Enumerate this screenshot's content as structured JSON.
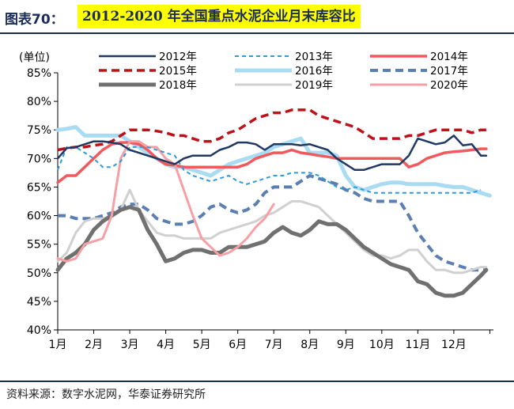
{
  "header": {
    "figure_label": "图表70：",
    "title": "2012-2020 年全国重点水泥企业月末库容比"
  },
  "footer": {
    "source": "资料来源：数字水泥网，华泰证券研究所"
  },
  "colors": {
    "header_blue": "#1a2d5a",
    "title_highlight": "#ffff00"
  },
  "chart_data": {
    "type": "line",
    "ylabel": "(单位)",
    "ylim": [
      40,
      85
    ],
    "yticks": [
      "40%",
      "45%",
      "50%",
      "55%",
      "60%",
      "65%",
      "70%",
      "75%",
      "80%",
      "85%"
    ],
    "xticks": [
      "1月",
      "2月",
      "3月",
      "4月",
      "5月",
      "6月",
      "7月",
      "8月",
      "9月",
      "10月",
      "11月",
      "12月"
    ],
    "xlim": [
      1,
      13.1
    ],
    "grid": false,
    "legend_position": "top",
    "series": [
      {
        "name": "2012年",
        "color": "#1f3864",
        "width": 2.5,
        "dash": "",
        "x": [
          1,
          1.25,
          1.5,
          1.75,
          2,
          2.25,
          2.5,
          2.75,
          3,
          3.25,
          3.5,
          3.75,
          4,
          4.25,
          4.5,
          4.75,
          5,
          5.25,
          5.5,
          5.75,
          6,
          6.25,
          6.5,
          6.75,
          7,
          7.25,
          7.5,
          7.75,
          8,
          8.25,
          8.5,
          8.75,
          9,
          9.25,
          9.5,
          9.75,
          10,
          10.25,
          10.5,
          10.75,
          11,
          11.25,
          11.5,
          11.75,
          12,
          12.25,
          12.5,
          12.75,
          12.9
        ],
        "y": [
          70.0,
          71.8,
          72.0,
          72.5,
          73.0,
          73.0,
          72.8,
          72.5,
          71.5,
          71.0,
          70.5,
          70.0,
          69.5,
          69.0,
          70.0,
          70.5,
          70.5,
          70.5,
          71.5,
          72.0,
          72.8,
          72.8,
          72.5,
          71.5,
          72.5,
          72.5,
          72.5,
          72.3,
          72.5,
          72.0,
          71.5,
          70.0,
          69.0,
          68.0,
          68.0,
          68.5,
          69.0,
          69.0,
          69.0,
          70.5,
          73.5,
          73.0,
          72.5,
          72.8,
          74.0,
          72.3,
          72.5,
          70.5,
          70.5
        ]
      },
      {
        "name": "2013年",
        "color": "#2e9bd6",
        "width": 2,
        "dash": "5,4",
        "x": [
          1,
          1.25,
          1.5,
          1.75,
          2,
          2.25,
          2.5,
          2.75,
          3,
          3.25,
          3.5,
          3.75,
          4,
          4.25,
          4.5,
          4.75,
          5,
          5.25,
          5.5,
          5.75,
          6,
          6.25,
          6.5,
          6.75,
          7,
          7.25,
          7.5,
          7.75,
          8,
          8.25,
          8.5,
          8.75,
          9,
          9.25,
          9.5,
          9.75,
          10,
          10.25,
          10.5,
          10.75,
          11,
          11.25,
          11.5,
          11.75,
          12,
          12.25,
          12.5,
          12.75
        ],
        "y": [
          68.0,
          72.0,
          72.0,
          71.0,
          70.0,
          68.5,
          68.5,
          69.5,
          72.0,
          72.0,
          72.0,
          71.5,
          71.0,
          70.5,
          68.0,
          67.0,
          66.5,
          66.0,
          66.5,
          67.0,
          66.0,
          65.5,
          66.0,
          66.5,
          67.0,
          67.0,
          67.5,
          67.5,
          67.5,
          67.0,
          66.0,
          65.0,
          64.5,
          65.0,
          64.5,
          64.0,
          64.0,
          64.0,
          64.0,
          64.0,
          64.0,
          64.0,
          64.0,
          64.0,
          64.0,
          64.0,
          64.0,
          64.5
        ]
      },
      {
        "name": "2014年",
        "color": "#f0595d",
        "width": 3.5,
        "dash": "",
        "x": [
          1,
          1.25,
          1.5,
          1.75,
          2,
          2.25,
          2.5,
          2.75,
          3,
          3.25,
          3.5,
          3.75,
          4,
          4.25,
          4.5,
          4.75,
          5,
          5.25,
          5.5,
          5.75,
          6,
          6.25,
          6.5,
          6.75,
          7,
          7.25,
          7.5,
          7.75,
          8,
          8.25,
          8.5,
          8.75,
          9,
          9.25,
          9.5,
          9.75,
          10,
          10.25,
          10.5,
          10.75,
          11,
          11.25,
          11.5,
          11.75,
          12,
          12.25,
          12.5,
          12.75,
          12.9
        ],
        "y": [
          65.8,
          67.0,
          67.0,
          68.5,
          70.0,
          71.5,
          72.5,
          72.8,
          72.8,
          72.5,
          71.5,
          70.0,
          69.0,
          68.8,
          68.5,
          68.5,
          68.5,
          68.5,
          68.5,
          68.5,
          68.5,
          69.0,
          70.0,
          70.5,
          71.0,
          71.0,
          71.5,
          71.0,
          70.8,
          70.5,
          70.3,
          70.0,
          70.0,
          70.0,
          70.0,
          70.0,
          70.0,
          70.0,
          70.0,
          68.5,
          69.0,
          70.0,
          70.5,
          71.0,
          71.2,
          71.3,
          71.5,
          71.7,
          71.7
        ]
      },
      {
        "name": "2015年",
        "color": "#c0101a",
        "width": 3.5,
        "dash": "10,6",
        "x": [
          1,
          1.25,
          1.5,
          1.75,
          2,
          2.25,
          2.5,
          2.75,
          3,
          3.25,
          3.5,
          3.75,
          4,
          4.25,
          4.5,
          4.75,
          5,
          5.25,
          5.5,
          5.75,
          6,
          6.25,
          6.5,
          6.75,
          7,
          7.25,
          7.5,
          7.75,
          8,
          8.25,
          8.5,
          8.75,
          9,
          9.25,
          9.5,
          9.75,
          10,
          10.25,
          10.5,
          10.75,
          11,
          11.25,
          11.5,
          11.75,
          12,
          12.25,
          12.5,
          12.75,
          12.9
        ],
        "y": [
          71.5,
          71.8,
          72.0,
          72.0,
          72.3,
          72.5,
          73.0,
          74.0,
          75.0,
          75.0,
          75.0,
          74.8,
          74.5,
          74.0,
          74.0,
          73.5,
          73.0,
          73.0,
          73.5,
          74.5,
          75.0,
          76.0,
          77.0,
          77.5,
          78.0,
          78.0,
          78.5,
          78.5,
          78.5,
          77.5,
          77.0,
          76.5,
          76.0,
          75.5,
          74.5,
          73.5,
          73.5,
          73.5,
          73.5,
          74.0,
          74.0,
          74.5,
          75.0,
          75.0,
          75.0,
          75.0,
          74.5,
          75.0,
          75.0
        ]
      },
      {
        "name": "2016年",
        "color": "#a9dcf3",
        "width": 5,
        "dash": "",
        "x": [
          1,
          1.25,
          1.5,
          1.75,
          2,
          2.25,
          2.5,
          2.75,
          3,
          3.25,
          3.5,
          3.75,
          4,
          4.25,
          4.5,
          4.75,
          5,
          5.25,
          5.5,
          5.75,
          6,
          6.25,
          6.5,
          6.75,
          7,
          7.25,
          7.5,
          7.75,
          8,
          8.25,
          8.5,
          8.75,
          9,
          9.25,
          9.5,
          9.75,
          10,
          10.25,
          10.5,
          10.75,
          11,
          11.25,
          11.5,
          11.75,
          12,
          12.25,
          12.5,
          12.75,
          13
        ],
        "y": [
          75.0,
          75.2,
          75.5,
          74.0,
          74.0,
          74.0,
          74.0,
          74.0,
          73.0,
          72.0,
          71.0,
          70.0,
          69.0,
          68.5,
          68.5,
          68.0,
          67.5,
          67.0,
          68.0,
          69.0,
          69.5,
          70.0,
          70.5,
          71.0,
          72.0,
          72.5,
          73.0,
          73.5,
          71.0,
          71.0,
          71.0,
          70.5,
          67.0,
          65.0,
          64.5,
          65.0,
          65.5,
          65.8,
          65.8,
          65.5,
          65.5,
          65.5,
          65.5,
          65.2,
          65.0,
          65.0,
          64.5,
          64.0,
          63.5
        ]
      },
      {
        "name": "2017年",
        "color": "#5b7fb0",
        "width": 4,
        "dash": "10,6",
        "x": [
          1,
          1.25,
          1.5,
          1.75,
          2,
          2.25,
          2.5,
          2.75,
          3,
          3.25,
          3.5,
          3.75,
          4,
          4.25,
          4.5,
          4.75,
          5,
          5.25,
          5.5,
          5.75,
          6,
          6.25,
          6.5,
          6.75,
          7,
          7.25,
          7.5,
          7.75,
          8,
          8.25,
          8.5,
          8.75,
          9,
          9.25,
          9.5,
          9.75,
          10,
          10.25,
          10.5,
          10.75,
          11,
          11.25,
          11.5,
          11.75,
          12,
          12.25,
          12.5,
          12.75,
          12.9
        ],
        "y": [
          60.0,
          60.0,
          59.5,
          59.5,
          59.5,
          60.0,
          60.5,
          61.5,
          62.0,
          62.0,
          61.0,
          59.5,
          59.0,
          58.5,
          58.5,
          59.0,
          60.0,
          61.5,
          62.0,
          61.0,
          60.5,
          61.0,
          62.0,
          64.0,
          65.0,
          65.0,
          65.0,
          66.0,
          67.0,
          66.5,
          66.0,
          65.5,
          64.5,
          64.0,
          63.0,
          62.5,
          62.5,
          62.5,
          62.5,
          60.0,
          57.0,
          55.0,
          53.0,
          52.0,
          51.5,
          51.0,
          50.5,
          50.5,
          50.5
        ]
      },
      {
        "name": "2018年",
        "color": "#707070",
        "width": 5,
        "dash": "",
        "x": [
          1,
          1.25,
          1.5,
          1.75,
          2,
          2.25,
          2.5,
          2.75,
          3,
          3.25,
          3.5,
          3.75,
          4,
          4.25,
          4.5,
          4.75,
          5,
          5.25,
          5.5,
          5.75,
          6,
          6.25,
          6.5,
          6.75,
          7,
          7.25,
          7.5,
          7.75,
          8,
          8.25,
          8.5,
          8.75,
          9,
          9.25,
          9.5,
          9.75,
          10,
          10.25,
          10.5,
          10.75,
          11,
          11.25,
          11.5,
          11.75,
          12,
          12.25,
          12.5,
          12.75,
          12.9
        ],
        "y": [
          50.5,
          52.5,
          53.5,
          55.0,
          57.5,
          59.0,
          60.0,
          61.0,
          61.5,
          61.0,
          57.5,
          55.0,
          52.0,
          52.5,
          53.5,
          54.0,
          54.0,
          53.5,
          53.5,
          54.5,
          54.5,
          54.5,
          55.0,
          55.5,
          57.0,
          58.0,
          57.0,
          56.5,
          57.5,
          59.0,
          58.5,
          58.5,
          57.5,
          56.0,
          54.5,
          53.5,
          52.5,
          51.5,
          51.0,
          50.5,
          48.5,
          48.0,
          46.5,
          46.0,
          46.0,
          46.5,
          48.0,
          49.5,
          50.5
        ]
      },
      {
        "name": "2019年",
        "color": "#d0d0d0",
        "width": 3,
        "dash": "",
        "x": [
          1,
          1.25,
          1.5,
          1.75,
          2,
          2.25,
          2.5,
          2.75,
          3,
          3.25,
          3.5,
          3.75,
          4,
          4.25,
          4.5,
          4.75,
          5,
          5.25,
          5.5,
          5.75,
          6,
          6.25,
          6.5,
          6.75,
          7,
          7.25,
          7.5,
          7.75,
          8,
          8.25,
          8.5,
          8.75,
          9,
          9.25,
          9.5,
          9.75,
          10,
          10.25,
          10.5,
          10.75,
          11,
          11.25,
          11.5,
          11.75,
          12,
          12.25,
          12.5,
          12.75,
          12.9
        ],
        "y": [
          52.0,
          53.5,
          57.0,
          59.0,
          59.5,
          59.5,
          60.0,
          61.0,
          64.5,
          61.0,
          59.0,
          57.0,
          56.5,
          56.5,
          56.0,
          56.0,
          56.0,
          56.0,
          57.0,
          57.5,
          58.0,
          58.5,
          59.0,
          60.0,
          60.5,
          61.5,
          62.5,
          62.5,
          62.0,
          61.5,
          60.0,
          58.5,
          57.0,
          55.5,
          54.0,
          53.0,
          53.0,
          52.5,
          53.0,
          54.0,
          54.0,
          52.0,
          50.5,
          50.5,
          50.0,
          50.0,
          50.5,
          51.0,
          51.0
        ]
      },
      {
        "name": "2020年",
        "color": "#f6a0a6",
        "width": 3,
        "dash": "",
        "x": [
          1,
          1.25,
          1.5,
          1.75,
          2,
          2.25,
          2.5,
          2.75,
          3,
          3.25,
          3.5,
          3.75,
          4,
          4.25,
          4.5,
          4.75,
          5,
          5.25,
          5.5,
          5.75,
          6,
          6.25,
          6.5,
          6.75,
          7
        ],
        "y": [
          52.5,
          52.0,
          52.5,
          55.0,
          55.5,
          56.0,
          60.0,
          70.0,
          73.0,
          73.0,
          72.0,
          72.0,
          70.0,
          69.0,
          64.5,
          60.0,
          56.0,
          54.5,
          53.0,
          53.5,
          54.5,
          56.0,
          58.0,
          59.5,
          62.0
        ]
      }
    ]
  }
}
